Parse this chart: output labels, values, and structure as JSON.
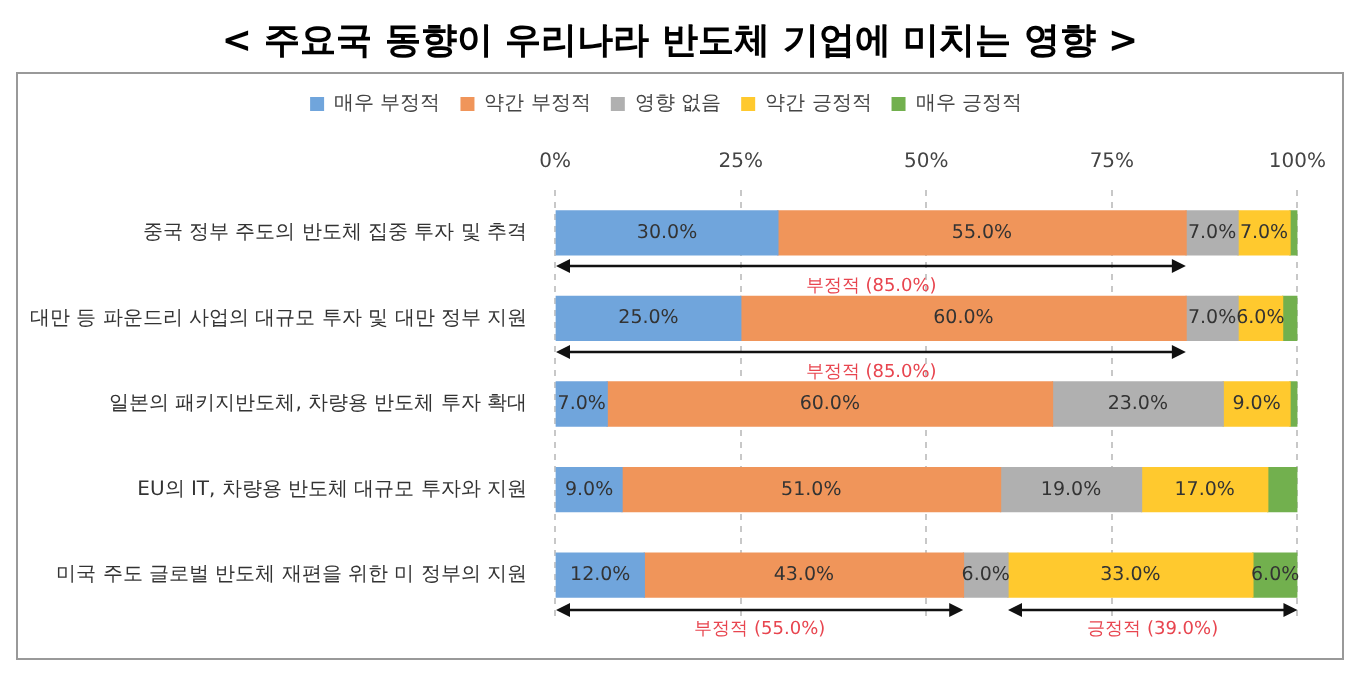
{
  "chart_data": {
    "type": "bar",
    "orientation": "horizontal",
    "stacked": true,
    "title": "< 주요국 동향이 우리나라 반도체 기업에 미치는 영향 >",
    "categories": [
      "중국 정부 주도의 반도체 집중 투자 및 추격",
      "대만 등 파운드리 사업의 대규모 투자 및 대만 정부 지원",
      "일본의 패키지반도체, 차량용 반도체 투자 확대",
      "EU의 IT, 차량용 반도체 대규모 투자와 지원",
      "미국 주도 글로벌 반도체 재편을 위한 미 정부의 지원"
    ],
    "series": [
      {
        "name": "매우 부정적",
        "color": "#70a5dc",
        "values": [
          30,
          25,
          7,
          9,
          12
        ],
        "value_labels": [
          "30.0%",
          "25.0%",
          "7.0%",
          "9.0%",
          "12.0%"
        ]
      },
      {
        "name": "약간 부정적",
        "color": "#f0955a",
        "values": [
          55,
          60,
          60,
          51,
          43
        ],
        "value_labels": [
          "55.0%",
          "60.0%",
          "60.0%",
          "51.0%",
          "43.0%"
        ]
      },
      {
        "name": "영향 없음",
        "color": "#b0b0b0",
        "values": [
          7,
          7,
          23,
          19,
          6
        ],
        "value_labels": [
          "7.0%",
          "7.0%",
          "23.0%",
          "19.0%",
          "6.0%"
        ]
      },
      {
        "name": "약간 긍정적",
        "color": "#ffc92e",
        "values": [
          7,
          6,
          9,
          17,
          33
        ],
        "value_labels": [
          "7.0%",
          "6.0%",
          "9.0%",
          "17.0%",
          "33.0%"
        ]
      },
      {
        "name": "매우 긍정적",
        "color": "#72b04e",
        "values": [
          1,
          2,
          1,
          4,
          6
        ],
        "value_labels": [
          null,
          null,
          null,
          null,
          "6.0%"
        ]
      }
    ],
    "xlim": [
      0,
      100
    ],
    "xticks": [
      {
        "value": 0,
        "label": "0%"
      },
      {
        "value": 25,
        "label": "25%"
      },
      {
        "value": 50,
        "label": "50%"
      },
      {
        "value": 75,
        "label": "75%"
      },
      {
        "value": 100,
        "label": "100%"
      }
    ],
    "grid": "x",
    "legend": "top",
    "annotations": [
      "부정적 (85.0%)",
      "부정적 (85.0%)",
      "부정적 (55.0%)",
      "긍정적 (39.0%)"
    ]
  }
}
